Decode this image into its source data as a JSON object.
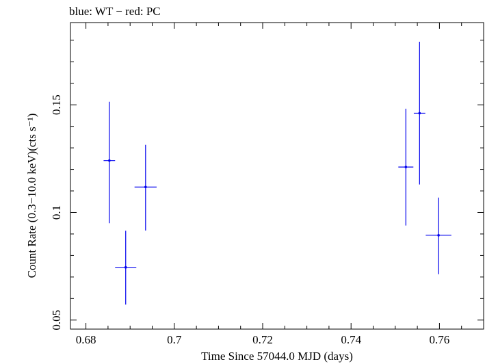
{
  "chart_data": {
    "type": "scatter",
    "title": "blue: WT − red: PC",
    "xlabel": "Time Since 57044.0 MJD (days)",
    "ylabel": "Count Rate (0.3−10.0 keV)(cts s⁻¹)",
    "xlim": [
      0.6765,
      0.77
    ],
    "ylim": [
      0.0458,
      0.1882
    ],
    "x_ticks": [
      0.68,
      0.7,
      0.72,
      0.74,
      0.76
    ],
    "x_tick_labels": [
      "0.68",
      "0.7",
      "0.72",
      "0.74",
      "0.76"
    ],
    "y_ticks": [
      0.05,
      0.1,
      0.15
    ],
    "y_tick_labels": [
      "0.05",
      "0.1",
      "0.15"
    ],
    "series": [
      {
        "name": "WT",
        "color": "#0000ee",
        "points": [
          {
            "x": 0.6853,
            "xerr": 0.0013,
            "y": 0.1241,
            "yerr_low": 0.0291,
            "yerr_high": 0.0273
          },
          {
            "x": 0.689,
            "xerr": 0.0024,
            "y": 0.0745,
            "yerr_low": 0.0173,
            "yerr_high": 0.017
          },
          {
            "x": 0.6935,
            "xerr": 0.0025,
            "y": 0.1118,
            "yerr_low": 0.0202,
            "yerr_high": 0.0196
          },
          {
            "x": 0.7524,
            "xerr": 0.0017,
            "y": 0.1211,
            "yerr_low": 0.0272,
            "yerr_high": 0.0271
          },
          {
            "x": 0.7555,
            "xerr": 0.0013,
            "y": 0.1461,
            "yerr_low": 0.0331,
            "yerr_high": 0.0332
          },
          {
            "x": 0.7598,
            "xerr": 0.0029,
            "y": 0.0894,
            "yerr_low": 0.0181,
            "yerr_high": 0.0175
          }
        ]
      }
    ]
  }
}
